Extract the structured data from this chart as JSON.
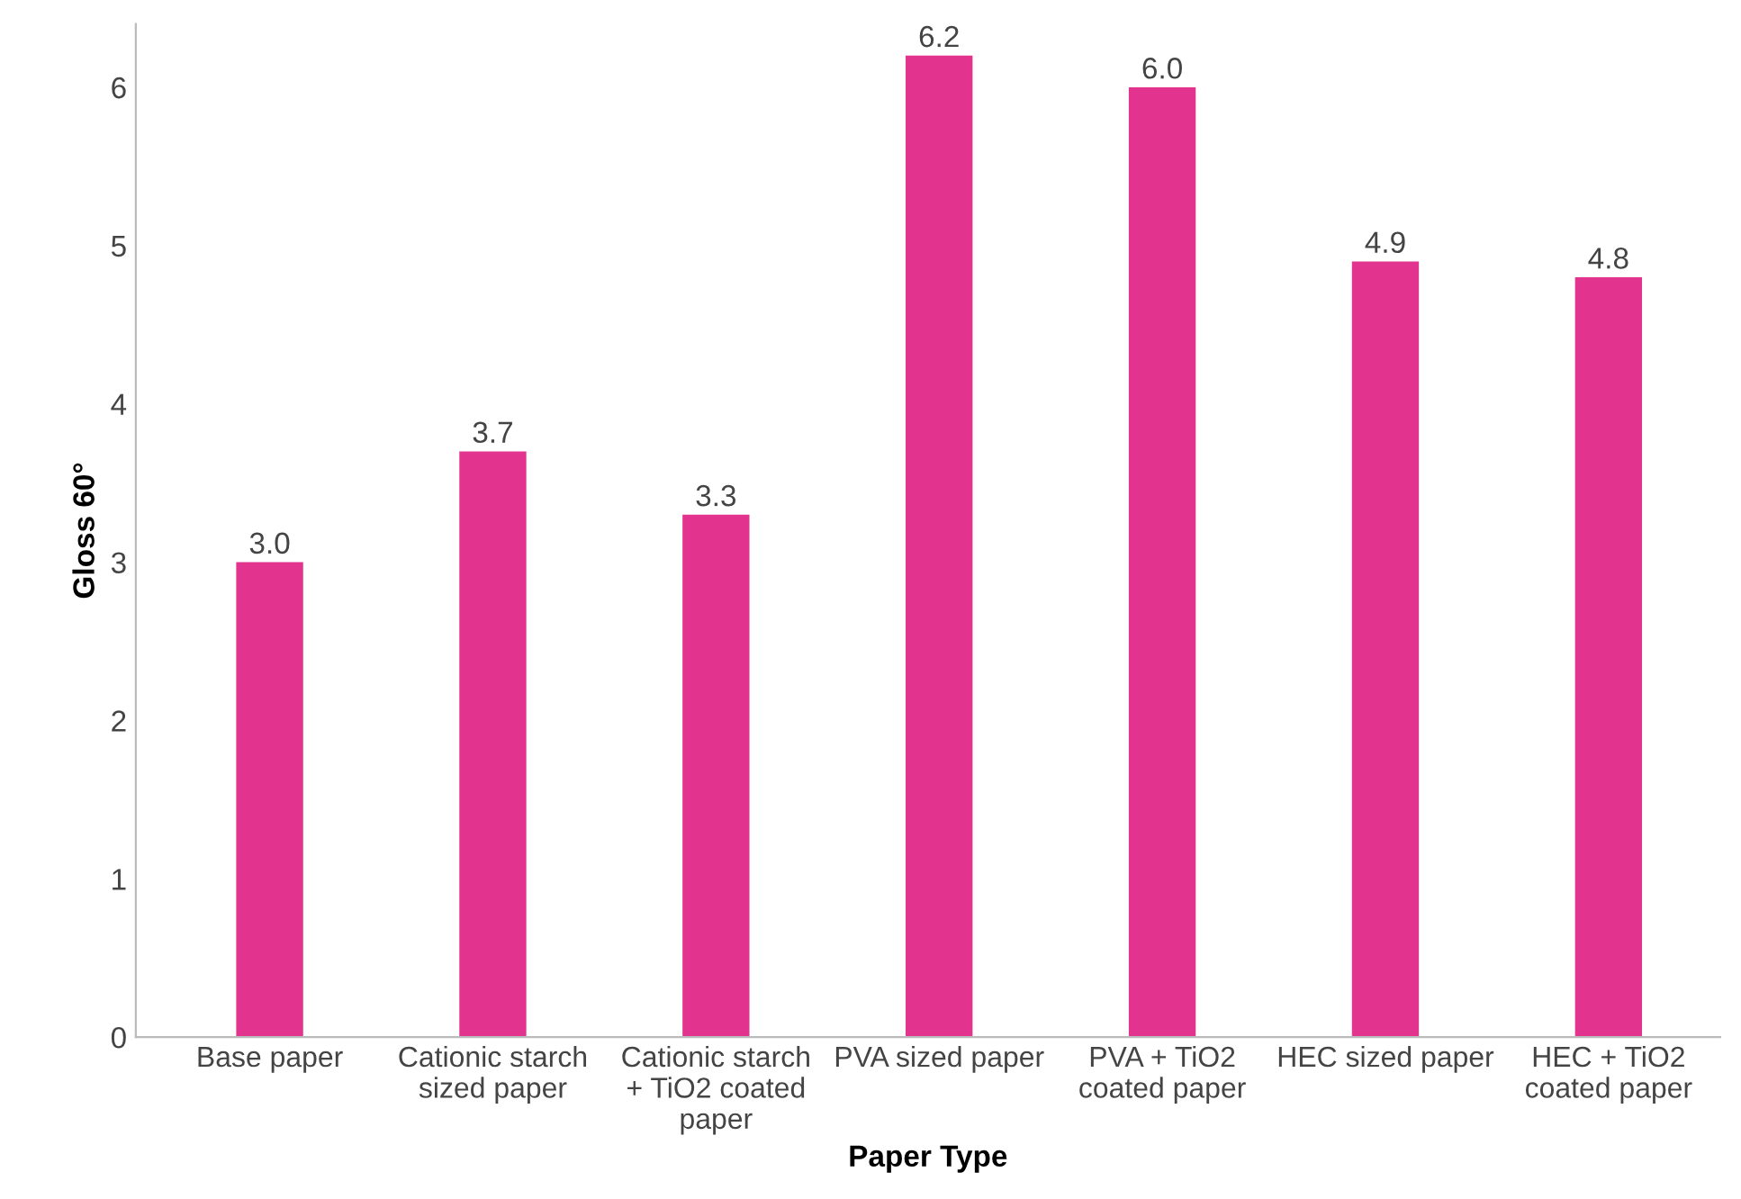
{
  "chart_data": {
    "type": "bar",
    "xlabel": "Paper Type",
    "ylabel": "Gloss 60°",
    "categories": [
      "Base paper",
      "Cationic starch sized paper",
      "Cationic starch + TiO2 coated paper",
      "PVA sized paper",
      "PVA + TiO2 coated paper",
      "HEC sized paper",
      "HEC + TiO2 coated paper"
    ],
    "series": [
      {
        "color": "#e2338f",
        "values": [
          3.0,
          3.7,
          3.3,
          6.2,
          6.0,
          4.9,
          4.8
        ]
      }
    ],
    "value_labels": [
      "3.0",
      "3.7",
      "3.3",
      "6.2",
      "6.0",
      "4.9",
      "4.8"
    ],
    "ylim": [
      0,
      6.4
    ],
    "yticks": [
      0,
      1,
      2,
      3,
      4,
      5,
      6
    ],
    "grid": false,
    "legend": false
  }
}
